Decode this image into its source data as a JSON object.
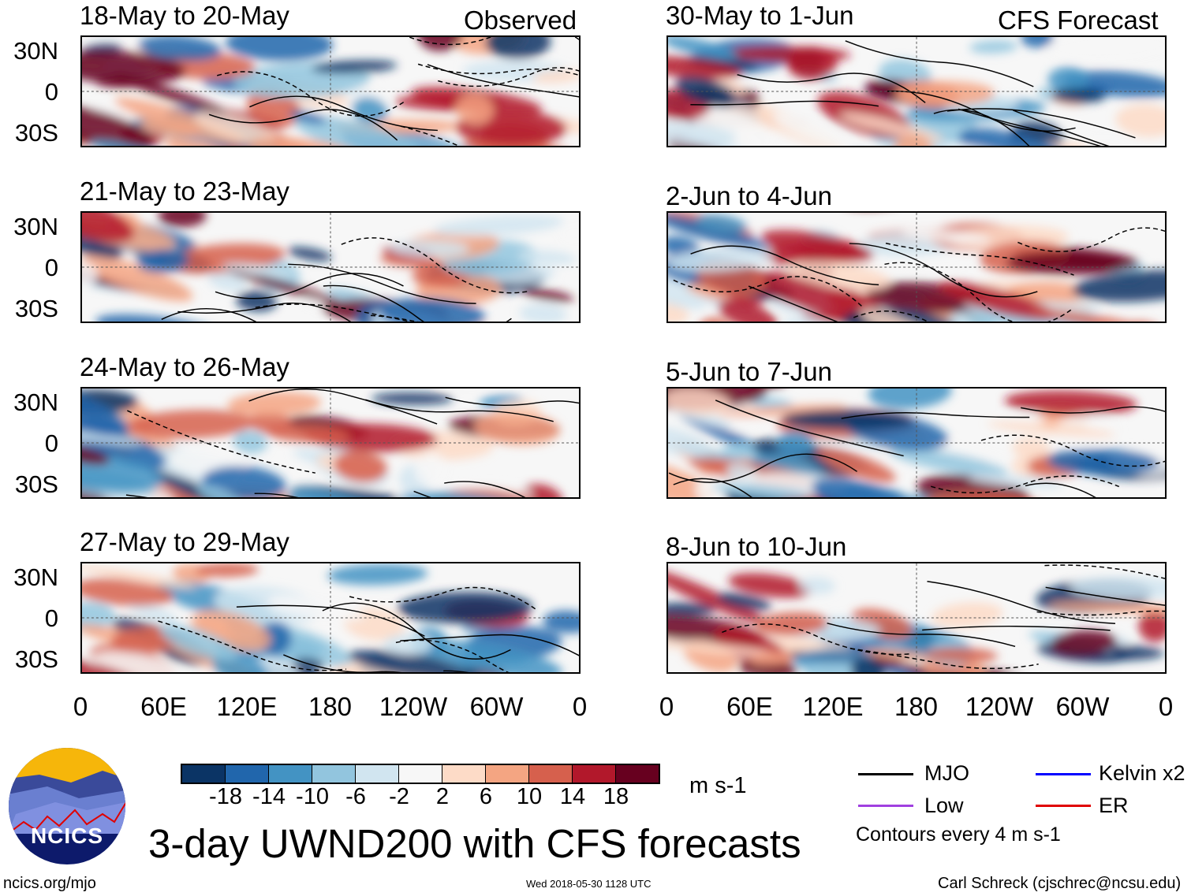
{
  "panels_left": [
    {
      "title": "18-May to 20-May",
      "tag": "Observed"
    },
    {
      "title": "21-May to 23-May"
    },
    {
      "title": "24-May to 26-May"
    },
    {
      "title": "27-May to 29-May"
    }
  ],
  "panels_right": [
    {
      "title": "30-May to 1-Jun",
      "tag": "CFS Forecast"
    },
    {
      "title": "2-Jun to 4-Jun"
    },
    {
      "title": "5-Jun to 7-Jun"
    },
    {
      "title": "8-Jun to 10-Jun"
    }
  ],
  "lat_labels": [
    "30N",
    "0",
    "30S"
  ],
  "lon_labels": [
    "0",
    "60E",
    "120E",
    "180",
    "120W",
    "60W",
    "0"
  ],
  "colorbar": {
    "colors": [
      "#0b3465",
      "#2166ac",
      "#4393c3",
      "#92c5de",
      "#d1e5f0",
      "#f7f7f7",
      "#fddbc7",
      "#f4a582",
      "#d6604d",
      "#b2182b",
      "#67001f"
    ],
    "labels": [
      "-18",
      "-14",
      "-10",
      "-6",
      "-2",
      "2",
      "6",
      "10",
      "14",
      "18"
    ],
    "units": "m s-1"
  },
  "legend": {
    "items": [
      {
        "label": "MJO",
        "color": "#000000"
      },
      {
        "label": "Kelvin x2",
        "color": "#0000ff"
      },
      {
        "label": "Low",
        "color": "#a040e0"
      },
      {
        "label": "ER",
        "color": "#e00000"
      }
    ],
    "contours": "Contours every 4 m s-1"
  },
  "logo_text": "NCICS",
  "title": "3-day UWND200 with CFS forecasts",
  "footer": {
    "left": "ncics.org/mjo",
    "center": "Wed 2018-05-30 1128 UTC",
    "right": "Carl Schreck (cjschrec@ncsu.edu)"
  }
}
